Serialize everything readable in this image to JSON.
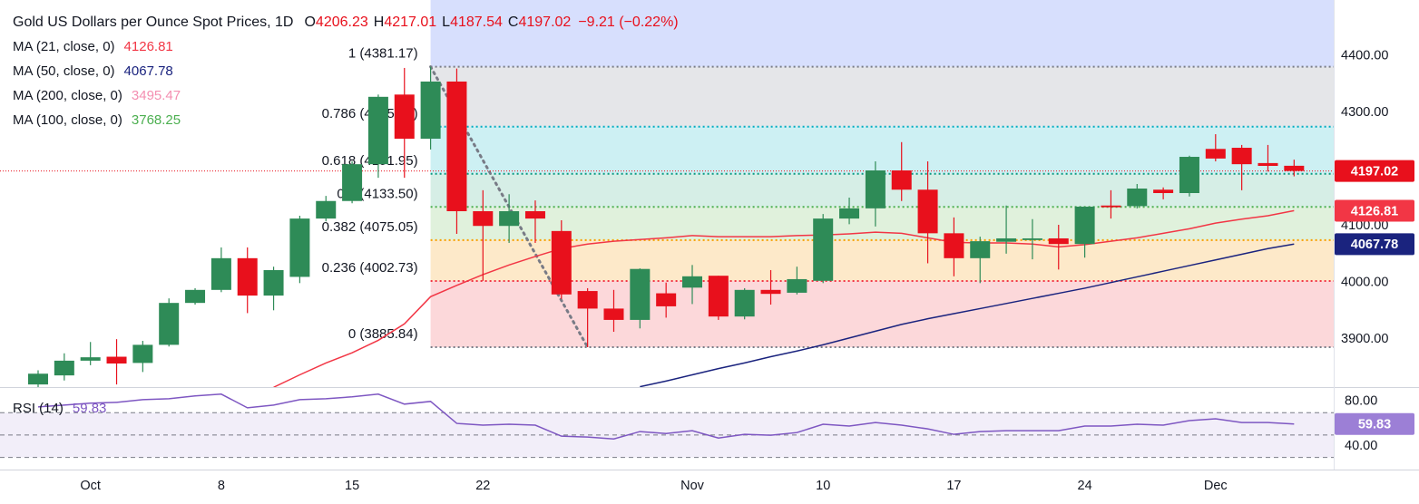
{
  "chart_data": {
    "type": "candlestick",
    "title": "Gold US Dollars per Ounce Spot Prices, 1D",
    "ohlc_header": [
      {
        "label": "O",
        "value": 4206.23
      },
      {
        "label": "H",
        "value": 4217.01
      },
      {
        "label": "L",
        "value": 4187.54
      },
      {
        "label": "C",
        "value": 4197.02
      }
    ],
    "change": "−9.21 (−0.22%)",
    "categories": [
      null,
      null,
      "Oct",
      null,
      null,
      null,
      null,
      "8",
      null,
      null,
      null,
      null,
      "15",
      null,
      null,
      null,
      null,
      "22",
      null,
      null,
      null,
      null,
      null,
      null,
      null,
      "Nov",
      null,
      null,
      null,
      null,
      "10",
      null,
      null,
      null,
      null,
      "17",
      null,
      null,
      null,
      null,
      "24",
      null,
      null,
      null,
      null,
      "Dec",
      null,
      null,
      null
    ],
    "open": [
      3820,
      3836,
      3862,
      3869,
      3858,
      3890,
      3964,
      3987,
      4043,
      3977,
      4010,
      4113,
      4144,
      4209,
      4332,
      4254,
      4355,
      4126,
      4100,
      4126,
      4091,
      3985,
      3954,
      3934,
      3981,
      3991,
      4012,
      3940,
      3987,
      3982,
      4003,
      4113,
      4131,
      4198,
      4164,
      4087,
      4043,
      4072,
      4075,
      4078,
      4068,
      4136,
      4135,
      4164,
      4158,
      4236,
      4238,
      4211,
      4206.23
    ],
    "high": [
      3845,
      3875,
      3895,
      3900,
      3897,
      3972,
      3990,
      4062,
      4062,
      4028,
      4118,
      4153,
      4214,
      4332,
      4379,
      4381.17,
      4378,
      4163,
      4156,
      4145,
      4110,
      3990,
      3987,
      4025,
      4000,
      4031,
      4012,
      3990,
      4022,
      4028,
      4121,
      4150,
      4214,
      4248,
      4214,
      4115,
      4081,
      4136,
      4112,
      4102,
      4134,
      4163,
      4174,
      4168,
      4224,
      4262,
      4243,
      4243,
      4217.01
    ],
    "low": [
      3815,
      3827,
      3854,
      3820,
      3842,
      3887,
      3961,
      3983,
      3946,
      3951,
      3999,
      4108,
      4140,
      4185,
      4185,
      4235,
      4086,
      4003,
      4070,
      4070,
      3971,
      3885.84,
      3913,
      3919,
      3938,
      3962,
      3934,
      3935,
      3961,
      3979,
      3999,
      4103,
      4099,
      4144,
      4034,
      4011,
      3999,
      4051,
      4041,
      4023,
      4044,
      4113,
      4131,
      4147,
      4152,
      4214,
      4163,
      4196,
      4187.54
    ],
    "close": [
      3839,
      3862,
      3868,
      3857,
      3890,
      3964,
      3987,
      4043,
      3977,
      4022,
      4113,
      4144,
      4209,
      4328,
      4254,
      4355,
      4126,
      4100,
      4126,
      4113,
      3979,
      3954,
      3934,
      4024,
      3958,
      4011,
      3940,
      3987,
      3980,
      4006,
      4113,
      4131,
      4198,
      4164,
      4087,
      4043,
      4073,
      4078,
      4078,
      4068,
      4134,
      4133,
      4166,
      4158,
      4222,
      4219,
      4209,
      4206,
      4197.02
    ],
    "up_color": "#2e8b57",
    "down_color": "#e8101c",
    "ylim": [
      3817,
      4499
    ],
    "yticks": [
      {
        "value": 3900,
        "label": "3900.00"
      },
      {
        "value": 4000,
        "label": "4000.00"
      },
      {
        "value": 4100,
        "label": "4100.00"
      },
      {
        "value": 4200,
        "label": "4200.00"
      },
      {
        "value": 4300,
        "label": "4300.00"
      },
      {
        "value": 4400,
        "label": "4400.00"
      }
    ],
    "moving_averages": [
      {
        "name": "MA (21, close, 0)",
        "value": 4126.81,
        "color": "#f23645",
        "values": [
          null,
          null,
          null,
          null,
          null,
          null,
          null,
          null,
          null,
          3815,
          3837,
          3858,
          3876,
          3898,
          3927,
          3975,
          3995,
          4014,
          4031,
          4046,
          4060,
          4068,
          4073,
          4076,
          4079,
          4083,
          4081,
          4081,
          4081,
          4083,
          4084,
          4086,
          4089,
          4087,
          4079,
          4071,
          4070,
          4070,
          4068,
          4063,
          4067,
          4073,
          4079,
          4087,
          4095,
          4105,
          4112,
          4118,
          4127
        ]
      },
      {
        "name": "MA (50, close, 0)",
        "value": 4067.78,
        "color": "#1a237e",
        "values": [
          null,
          null,
          null,
          null,
          null,
          null,
          null,
          null,
          null,
          null,
          null,
          null,
          null,
          null,
          null,
          null,
          null,
          null,
          null,
          null,
          null,
          null,
          null,
          3816,
          3826,
          3837,
          3848,
          3858,
          3869,
          3879,
          3890,
          3902,
          3914,
          3926,
          3936,
          3945,
          3954,
          3963,
          3972,
          3981,
          3990,
          4000,
          4010,
          4020,
          4030,
          4040,
          4050,
          4060,
          4068
        ]
      },
      {
        "name": "MA (200, close, 0)",
        "value": 3495.47,
        "color": "#f48fb1"
      },
      {
        "name": "MA (100, close, 0)",
        "value": 3768.25,
        "color": "#4caf50"
      }
    ],
    "fibonacci": {
      "top_fill": "#d7dffd",
      "levels": [
        {
          "label": "1 (4381.17)",
          "value": 4381.17,
          "color": "#787b86",
          "fill": "#e5e6e9"
        },
        {
          "label": "0.786 (4275.17)",
          "value": 4275.17,
          "color": "#00acc1",
          "fill": "#cdf0f3"
        },
        {
          "label": "0.618 (4191.95)",
          "value": 4191.95,
          "color": "#089981",
          "fill": "#d6eee6"
        },
        {
          "label": "0.5 (4133.50)",
          "value": 4133.5,
          "color": "#4caf50",
          "fill": "#e0f1dc"
        },
        {
          "label": "0.382 (4075.05)",
          "value": 4075.05,
          "color": "#f5a000",
          "fill": "#fde9c9"
        },
        {
          "label": "0.236 (4002.73)",
          "value": 4002.73,
          "color": "#f23645",
          "fill": "#fcd8da"
        },
        {
          "label": "0 (3885.84)",
          "value": 3885.84,
          "color": "#787b86"
        }
      ]
    },
    "rsi": {
      "name": "RSI (14)",
      "value": 59.83,
      "color": "#7e57c2",
      "values": [
        75.1,
        76.7,
        78.4,
        79.2,
        81.6,
        82.4,
        84.9,
        86.5,
        74.3,
        76.7,
        81.6,
        82.4,
        84.1,
        86.5,
        77.6,
        80.0,
        60.4,
        58.8,
        59.6,
        58.8,
        49.0,
        48.2,
        46.5,
        53.1,
        51.4,
        53.9,
        47.3,
        50.6,
        49.8,
        52.2,
        59.6,
        58.0,
        61.2,
        58.8,
        55.5,
        50.6,
        53.1,
        53.9,
        53.9,
        53.9,
        58.0,
        58.0,
        59.6,
        58.8,
        62.9,
        64.5,
        61.2,
        61.2,
        59.83
      ],
      "ylim": [
        20,
        92
      ],
      "yticks": [
        {
          "value": 80,
          "label": "80.00"
        },
        {
          "value": 40,
          "label": "40.00"
        }
      ],
      "levels": [
        70,
        50,
        30
      ]
    }
  }
}
